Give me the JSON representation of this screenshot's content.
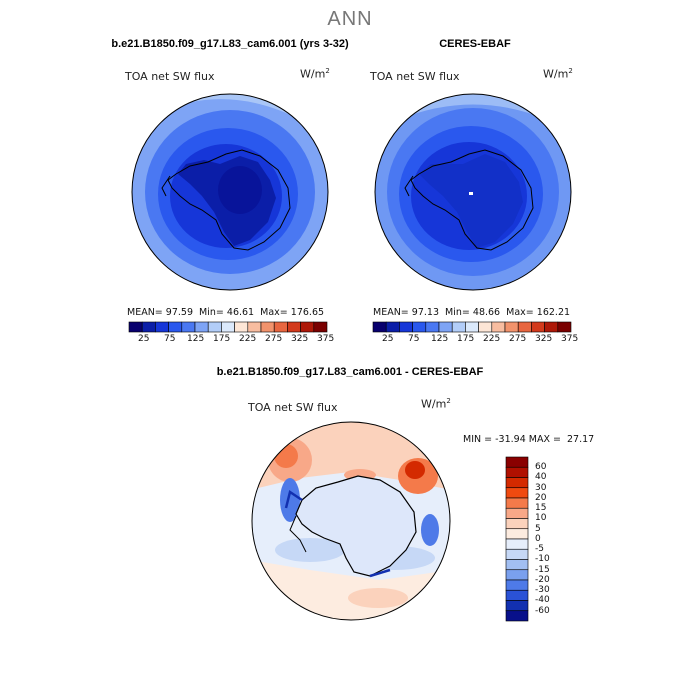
{
  "main_title": "ANN",
  "panels": [
    {
      "title": "b.e21.B1850.f09_g17.L83_cam6.001 (yrs 3-32)",
      "variable": "TOA net SW flux",
      "units_base": "W/m",
      "units_exp": "2",
      "stats": {
        "mean_label": "MEAN=",
        "mean": "97.59",
        "min_label": "Min=",
        "min": "46.61",
        "max_label": "Max=",
        "max": "176.65"
      }
    },
    {
      "title": "CERES-EBAF",
      "variable": "TOA net SW flux",
      "units_base": "W/m",
      "units_exp": "2",
      "stats": {
        "mean_label": "MEAN=",
        "mean": "97.13",
        "min_label": "Min=",
        "min": "48.66",
        "max_label": "Max=",
        "max": "162.21"
      }
    }
  ],
  "top_colorbar": {
    "colors": [
      "#08006e",
      "#0b1ea8",
      "#1636d8",
      "#2a58ee",
      "#4a78f2",
      "#7ea4f5",
      "#b2cdf8",
      "#dbe9fb",
      "#fde6d6",
      "#f8bda0",
      "#f2936c",
      "#e86640",
      "#d33a1c",
      "#ae1808",
      "#7a0000"
    ],
    "tick_labels": [
      "25",
      "75",
      "125",
      "175",
      "225",
      "275",
      "325",
      "375"
    ]
  },
  "diff_panel": {
    "title": "b.e21.B1850.f09_g17.L83_cam6.001 - CERES-EBAF",
    "variable": "TOA net SW flux",
    "units_base": "W/m",
    "units_exp": "2",
    "stats": {
      "min_label": "MIN =",
      "min": "-31.94",
      "max_label": "MAX =",
      "max": "27.17"
    }
  },
  "diff_colorbar": {
    "colors": [
      "#8a0000",
      "#b01000",
      "#d42a00",
      "#f04a10",
      "#f47a4a",
      "#f8a888",
      "#fbd2bc",
      "#fdece0",
      "#e6eefb",
      "#c6d8f6",
      "#a2bff2",
      "#7aa0ee",
      "#4e7ae8",
      "#2a52d6",
      "#1230b0",
      "#08108a"
    ],
    "tick_labels": [
      "60",
      "40",
      "30",
      "20",
      "15",
      "10",
      "5",
      "0",
      "-5",
      "-10",
      "-15",
      "-20",
      "-30",
      "-40",
      "-60"
    ]
  }
}
